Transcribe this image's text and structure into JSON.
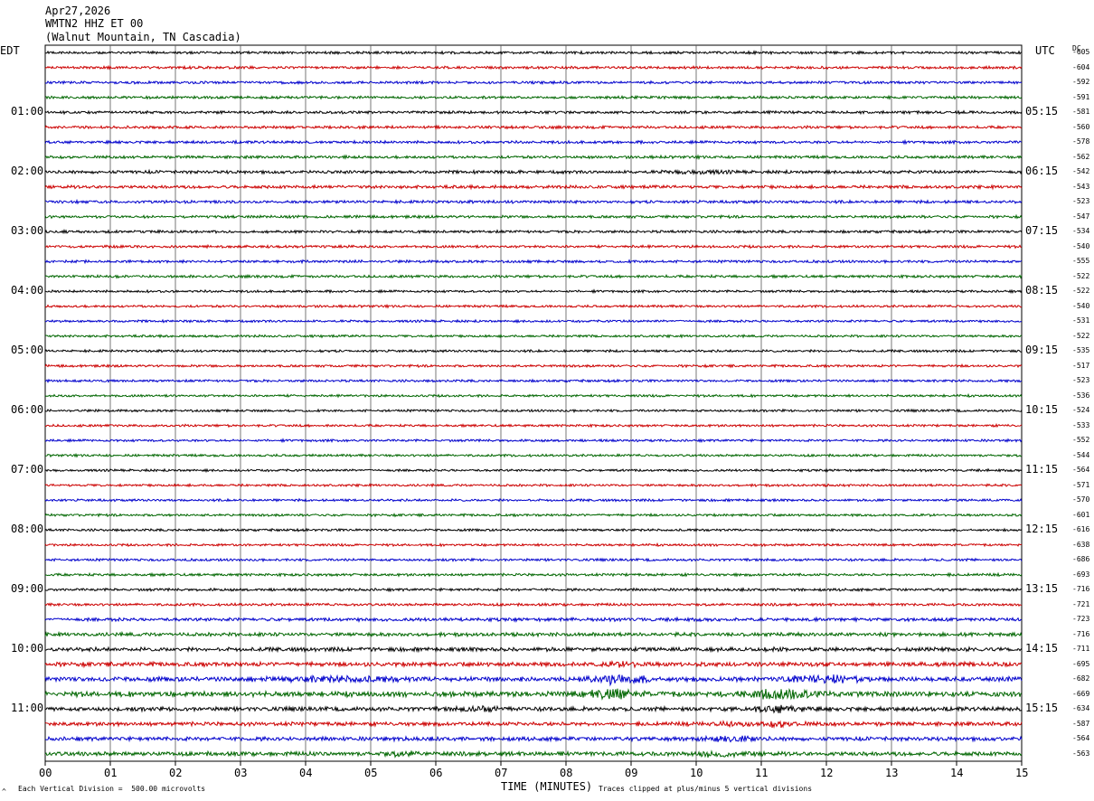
{
  "header": {
    "date": "Apr27,2026",
    "channel": "WMTN2 HHZ ET 00",
    "station": "(Walnut Mountain, TN Cascadia)"
  },
  "left_timezone": "EDT",
  "right_timezone": "UTC",
  "dc_label": "DC",
  "footer": {
    "scale_note": "Each Vertical Division =  500.00 microvolts",
    "clip_note": "Traces clipped at plus/minus 5 vertical divisions",
    "corner_mark": "^"
  },
  "colors": {
    "trace_cycle": [
      "#000000",
      "#cc0000",
      "#0000cc",
      "#006600"
    ],
    "grid": "#555555"
  },
  "chart_data": {
    "type": "line",
    "title": "WMTN2 HHZ ET 00",
    "xlabel": "TIME (MINUTES)",
    "ylabel": "",
    "x_range": [
      0,
      15
    ],
    "x_ticks": [
      "00",
      "01",
      "02",
      "03",
      "04",
      "05",
      "06",
      "07",
      "08",
      "09",
      "10",
      "11",
      "12",
      "13",
      "14",
      "15"
    ],
    "left_hour_labels": [
      "01:00",
      "02:00",
      "03:00",
      "04:00",
      "05:00",
      "06:00",
      "07:00",
      "08:00",
      "09:00",
      "10:00",
      "11:00"
    ],
    "right_hour_labels": [
      "05:15",
      "06:15",
      "07:15",
      "08:15",
      "09:15",
      "10:15",
      "11:15",
      "12:15",
      "13:15",
      "14:15",
      "15:15"
    ],
    "hour_label_first_row": 4,
    "rows_per_hour": 4,
    "dc_offsets": [
      -605,
      -604,
      -592,
      -591,
      -581,
      -560,
      -578,
      -562,
      -542,
      -543,
      -523,
      -547,
      -534,
      -540,
      -555,
      -522,
      -522,
      -540,
      -531,
      -522,
      -535,
      -517,
      -523,
      -536,
      -524,
      -533,
      -552,
      -544,
      -564,
      -571,
      -570,
      -601,
      -616,
      -638,
      -686,
      -693,
      -716,
      -721,
      -723,
      -716,
      -711,
      -695,
      -682,
      -669,
      -634,
      -587,
      -564,
      -563
    ],
    "row_activity": [
      1,
      1,
      1,
      1,
      1.05,
      1.05,
      1.05,
      1.05,
      1.2,
      1.2,
      1.1,
      1,
      1,
      1,
      1,
      1,
      0.9,
      0.9,
      0.9,
      0.9,
      0.9,
      0.9,
      0.9,
      0.9,
      0.9,
      0.9,
      0.9,
      0.9,
      0.9,
      0.9,
      0.9,
      0.9,
      0.9,
      0.9,
      0.95,
      1,
      1,
      1,
      1.3,
      1.4,
      1.5,
      1.6,
      1.8,
      2.0,
      1.6,
      1.5,
      1.5,
      1.6
    ],
    "bursts": [
      {
        "row": 8,
        "center_min": 10.0,
        "width_min": 0.6,
        "gain": 1.8
      },
      {
        "row": 41,
        "center_min": 8.9,
        "width_min": 0.5,
        "gain": 1.6
      },
      {
        "row": 42,
        "center_min": 8.8,
        "width_min": 0.6,
        "gain": 2.6
      },
      {
        "row": 42,
        "center_min": 12.0,
        "width_min": 0.8,
        "gain": 2.0
      },
      {
        "row": 42,
        "center_min": 4.5,
        "width_min": 1.2,
        "gain": 1.6
      },
      {
        "row": 43,
        "center_min": 8.7,
        "width_min": 0.5,
        "gain": 2.4
      },
      {
        "row": 43,
        "center_min": 11.3,
        "width_min": 0.8,
        "gain": 2.2
      },
      {
        "row": 44,
        "center_min": 11.3,
        "width_min": 0.5,
        "gain": 2.2
      },
      {
        "row": 44,
        "center_min": 6.7,
        "width_min": 0.4,
        "gain": 1.8
      },
      {
        "row": 45,
        "center_min": 11.3,
        "width_min": 0.4,
        "gain": 2.0
      },
      {
        "row": 45,
        "center_min": 10.5,
        "width_min": 0.4,
        "gain": 1.7
      },
      {
        "row": 46,
        "center_min": 10.6,
        "width_min": 0.5,
        "gain": 2.0
      },
      {
        "row": 47,
        "center_min": 10.4,
        "width_min": 0.5,
        "gain": 2.2
      },
      {
        "row": 47,
        "center_min": 5.5,
        "width_min": 0.4,
        "gain": 1.6
      }
    ]
  }
}
